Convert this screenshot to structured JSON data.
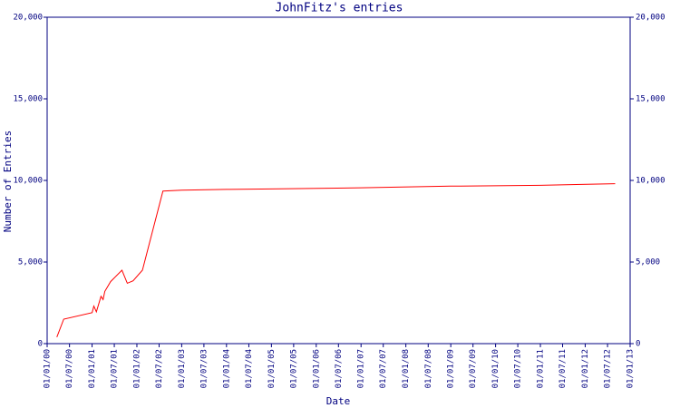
{
  "chart_data": {
    "type": "line",
    "title": "JohnFitz's entries",
    "x_label": "Date",
    "y_label": "Number of Entries",
    "x": [
      "2000-03-20",
      "2000-05-15",
      "2001-01-01",
      "2001-01-15",
      "2001-02-05",
      "2001-03-15",
      "2001-04-01",
      "2001-04-15",
      "2001-06-01",
      "2001-09-01",
      "2001-10-15",
      "2001-12-01",
      "2002-02-15",
      "2002-08-01",
      "2003-01-01",
      "2004-01-01",
      "2005-01-01",
      "2007-01-01",
      "2009-01-01",
      "2011-01-01",
      "2012-09-01"
    ],
    "values": [
      400,
      1500,
      1900,
      2300,
      1950,
      2900,
      2700,
      3200,
      3800,
      4500,
      3700,
      3850,
      4500,
      9350,
      9400,
      9450,
      9480,
      9550,
      9650,
      9700,
      9800
    ],
    "color": "#ff0000",
    "xlim": [
      "2000-01-01",
      "2013-01-01"
    ],
    "xticks": [
      {
        "value": "2000-01-01",
        "label": "01/01/00"
      },
      {
        "value": "2000-07-01",
        "label": "01/07/00"
      },
      {
        "value": "2001-01-01",
        "label": "01/01/01"
      },
      {
        "value": "2001-07-01",
        "label": "01/07/01"
      },
      {
        "value": "2002-01-01",
        "label": "01/01/02"
      },
      {
        "value": "2002-07-01",
        "label": "01/07/02"
      },
      {
        "value": "2003-01-01",
        "label": "01/01/03"
      },
      {
        "value": "2003-07-01",
        "label": "01/07/03"
      },
      {
        "value": "2004-01-01",
        "label": "01/01/04"
      },
      {
        "value": "2004-07-01",
        "label": "01/07/04"
      },
      {
        "value": "2005-01-01",
        "label": "01/01/05"
      },
      {
        "value": "2005-07-01",
        "label": "01/07/05"
      },
      {
        "value": "2006-01-01",
        "label": "01/01/06"
      },
      {
        "value": "2006-07-01",
        "label": "01/07/06"
      },
      {
        "value": "2007-01-01",
        "label": "01/01/07"
      },
      {
        "value": "2007-07-01",
        "label": "01/07/07"
      },
      {
        "value": "2008-01-01",
        "label": "01/01/08"
      },
      {
        "value": "2008-07-01",
        "label": "01/07/08"
      },
      {
        "value": "2009-01-01",
        "label": "01/01/09"
      },
      {
        "value": "2009-07-01",
        "label": "01/07/09"
      },
      {
        "value": "2010-01-01",
        "label": "01/01/10"
      },
      {
        "value": "2010-07-01",
        "label": "01/07/10"
      },
      {
        "value": "2011-01-01",
        "label": "01/01/11"
      },
      {
        "value": "2011-07-01",
        "label": "01/07/11"
      },
      {
        "value": "2012-01-01",
        "label": "01/01/12"
      },
      {
        "value": "2012-07-01",
        "label": "01/07/12"
      },
      {
        "value": "2013-01-01",
        "label": "01/01/13"
      }
    ],
    "ylim": [
      0,
      20000
    ],
    "yticks": [
      0,
      {
        "value": 5000,
        "label": "5,000"
      },
      {
        "value": 10000,
        "label": "10,000"
      },
      {
        "value": 15000,
        "label": "15,000"
      },
      {
        "value": 20000,
        "label": "20,000"
      }
    ],
    "axis_color": "#000080"
  }
}
